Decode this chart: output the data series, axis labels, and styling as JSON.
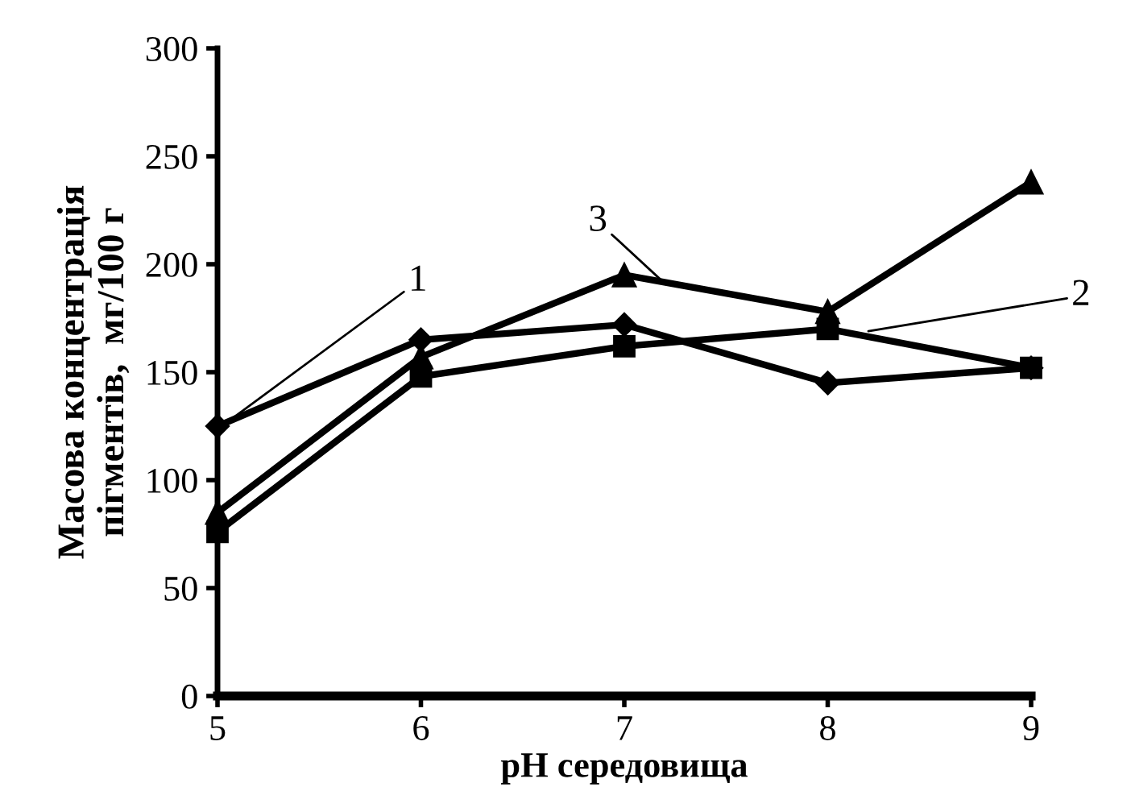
{
  "chart_data": {
    "type": "line",
    "x": [
      5,
      6,
      7,
      8,
      9
    ],
    "xlabel": "pH середовища",
    "ylabel": "Масова концентрація\nпігментів,  мг/100 г",
    "xlim": [
      5,
      9
    ],
    "xticks": [
      5,
      6,
      7,
      8,
      9
    ],
    "ylim": [
      0,
      300
    ],
    "yticks": [
      0,
      50,
      100,
      150,
      200,
      250,
      300
    ],
    "grid": false,
    "legend": false,
    "line_style": "solid",
    "series": [
      {
        "color": "#000000",
        "marker": "diamond",
        "values": [
          125,
          165,
          172,
          145,
          152
        ]
      },
      {
        "color": "#000000",
        "marker": "square",
        "values": [
          76,
          148,
          162,
          170,
          152
        ]
      },
      {
        "color": "#000000",
        "marker": "triangle",
        "values": [
          85,
          157,
          195,
          178,
          238
        ]
      }
    ],
    "annotations": [
      {
        "text": "1",
        "x": 5.05,
        "y": 127
      },
      {
        "text": "3",
        "x": 7.2,
        "y": 191
      },
      {
        "text": "2",
        "x": 8.2,
        "y": 169
      }
    ]
  }
}
